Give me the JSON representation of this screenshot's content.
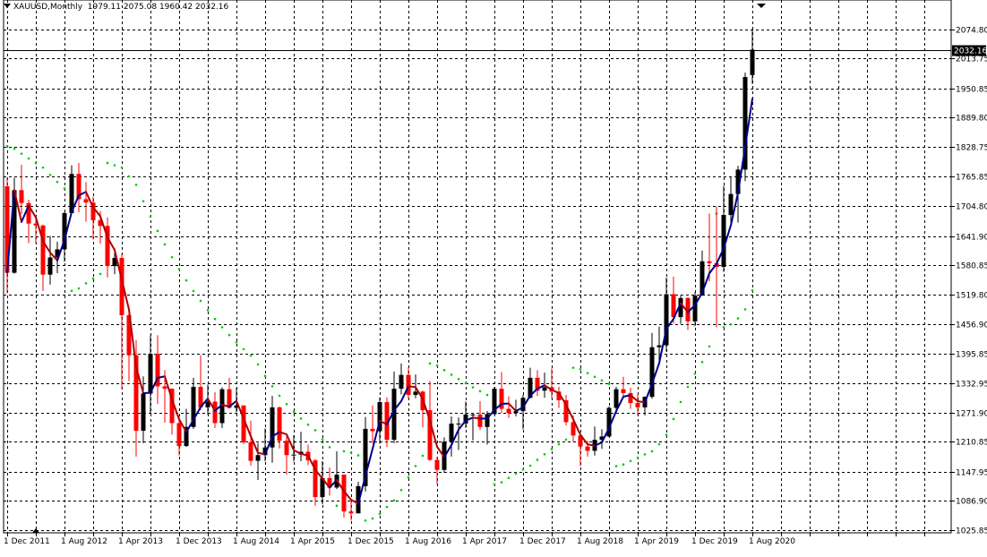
{
  "header": {
    "symbol": "XAUUSD,Monthly",
    "ohlc": "1979.11 2075.08 1960.42 2032.16"
  },
  "colors": {
    "bull": "#000000",
    "bear": "#ff0000",
    "ma_fast": "#00008b",
    "ma_slow": "#b00000",
    "psar": "#00cc00",
    "grid": "#000000",
    "price_line": "#000000"
  },
  "icons": {
    "shift_marker": "triangle-down-icon",
    "period_marker": "triangle-up-icon"
  },
  "chart_data": {
    "type": "candlestick",
    "symbol": "XAUUSD",
    "timeframe": "Monthly",
    "current_price": "2032.16",
    "ylim": [
      1025.85,
      2095.0
    ],
    "y_ticks": [
      "2074.80",
      "2013.75",
      "1950.85",
      "1889.80",
      "1828.75",
      "1765.85",
      "1704.80",
      "1641.90",
      "1580.85",
      "1519.80",
      "1456.90",
      "1395.85",
      "1332.95",
      "1271.90",
      "1210.85",
      "1147.95",
      "1086.90",
      "1025.85"
    ],
    "x_ticks": [
      "1 Dec 2011",
      "1 Aug 2012",
      "1 Apr 2013",
      "1 Dec 2013",
      "1 Aug 2014",
      "1 Apr 2015",
      "1 Dec 2015",
      "1 Aug 2016",
      "1 Apr 2017",
      "1 Dec 2017",
      "1 Aug 2018",
      "1 Apr 2019",
      "1 Dec 2019",
      "1 Aug 2020"
    ],
    "candles": [
      {
        "t": "2011-12",
        "o": 1746,
        "h": 1764,
        "l": 1522,
        "c": 1565
      },
      {
        "t": "2012-01",
        "o": 1565,
        "h": 1764,
        "l": 1563,
        "c": 1738
      },
      {
        "t": "2012-02",
        "o": 1738,
        "h": 1791,
        "l": 1688,
        "c": 1711
      },
      {
        "t": "2012-03",
        "o": 1711,
        "h": 1718,
        "l": 1627,
        "c": 1668
      },
      {
        "t": "2012-04",
        "o": 1668,
        "h": 1677,
        "l": 1626,
        "c": 1664
      },
      {
        "t": "2012-05",
        "o": 1664,
        "h": 1666,
        "l": 1527,
        "c": 1561
      },
      {
        "t": "2012-06",
        "o": 1561,
        "h": 1642,
        "l": 1540,
        "c": 1597
      },
      {
        "t": "2012-07",
        "o": 1597,
        "h": 1630,
        "l": 1564,
        "c": 1614
      },
      {
        "t": "2012-08",
        "o": 1614,
        "h": 1693,
        "l": 1588,
        "c": 1690
      },
      {
        "t": "2012-09",
        "o": 1690,
        "h": 1790,
        "l": 1687,
        "c": 1772
      },
      {
        "t": "2012-10",
        "o": 1772,
        "h": 1795,
        "l": 1692,
        "c": 1719
      },
      {
        "t": "2012-11",
        "o": 1719,
        "h": 1755,
        "l": 1672,
        "c": 1712
      },
      {
        "t": "2012-12",
        "o": 1712,
        "h": 1724,
        "l": 1635,
        "c": 1675
      },
      {
        "t": "2013-01",
        "o": 1675,
        "h": 1694,
        "l": 1626,
        "c": 1663
      },
      {
        "t": "2013-02",
        "o": 1663,
        "h": 1681,
        "l": 1555,
        "c": 1579
      },
      {
        "t": "2013-03",
        "o": 1579,
        "h": 1616,
        "l": 1562,
        "c": 1596
      },
      {
        "t": "2013-04",
        "o": 1596,
        "h": 1605,
        "l": 1321,
        "c": 1476
      },
      {
        "t": "2013-05",
        "o": 1476,
        "h": 1487,
        "l": 1338,
        "c": 1392
      },
      {
        "t": "2013-06",
        "o": 1392,
        "h": 1424,
        "l": 1180,
        "c": 1234
      },
      {
        "t": "2013-07",
        "o": 1234,
        "h": 1348,
        "l": 1208,
        "c": 1312
      },
      {
        "t": "2013-08",
        "o": 1312,
        "h": 1434,
        "l": 1271,
        "c": 1395
      },
      {
        "t": "2013-09",
        "o": 1395,
        "h": 1434,
        "l": 1290,
        "c": 1327
      },
      {
        "t": "2013-10",
        "o": 1327,
        "h": 1361,
        "l": 1251,
        "c": 1322
      },
      {
        "t": "2013-11",
        "o": 1322,
        "h": 1323,
        "l": 1226,
        "c": 1250
      },
      {
        "t": "2013-12",
        "o": 1250,
        "h": 1266,
        "l": 1182,
        "c": 1202
      },
      {
        "t": "2014-01",
        "o": 1202,
        "h": 1280,
        "l": 1200,
        "c": 1242
      },
      {
        "t": "2014-02",
        "o": 1242,
        "h": 1345,
        "l": 1238,
        "c": 1326
      },
      {
        "t": "2014-03",
        "o": 1326,
        "h": 1392,
        "l": 1277,
        "c": 1283
      },
      {
        "t": "2014-04",
        "o": 1283,
        "h": 1331,
        "l": 1268,
        "c": 1295
      },
      {
        "t": "2014-05",
        "o": 1295,
        "h": 1315,
        "l": 1240,
        "c": 1250
      },
      {
        "t": "2014-06",
        "o": 1250,
        "h": 1325,
        "l": 1240,
        "c": 1321
      },
      {
        "t": "2014-07",
        "o": 1321,
        "h": 1345,
        "l": 1280,
        "c": 1282
      },
      {
        "t": "2014-08",
        "o": 1282,
        "h": 1324,
        "l": 1273,
        "c": 1287
      },
      {
        "t": "2014-09",
        "o": 1287,
        "h": 1287,
        "l": 1206,
        "c": 1210
      },
      {
        "t": "2014-10",
        "o": 1210,
        "h": 1255,
        "l": 1161,
        "c": 1171
      },
      {
        "t": "2014-11",
        "o": 1171,
        "h": 1208,
        "l": 1131,
        "c": 1183
      },
      {
        "t": "2014-12",
        "o": 1183,
        "h": 1239,
        "l": 1170,
        "c": 1199
      },
      {
        "t": "2015-01",
        "o": 1199,
        "h": 1307,
        "l": 1167,
        "c": 1283
      },
      {
        "t": "2015-02",
        "o": 1283,
        "h": 1285,
        "l": 1197,
        "c": 1213
      },
      {
        "t": "2015-03",
        "o": 1213,
        "h": 1224,
        "l": 1142,
        "c": 1183
      },
      {
        "t": "2015-04",
        "o": 1183,
        "h": 1225,
        "l": 1170,
        "c": 1184
      },
      {
        "t": "2015-05",
        "o": 1184,
        "h": 1232,
        "l": 1170,
        "c": 1190
      },
      {
        "t": "2015-06",
        "o": 1190,
        "h": 1205,
        "l": 1162,
        "c": 1172
      },
      {
        "t": "2015-07",
        "o": 1172,
        "h": 1175,
        "l": 1077,
        "c": 1095
      },
      {
        "t": "2015-08",
        "o": 1095,
        "h": 1170,
        "l": 1080,
        "c": 1135
      },
      {
        "t": "2015-09",
        "o": 1135,
        "h": 1157,
        "l": 1098,
        "c": 1115
      },
      {
        "t": "2015-10",
        "o": 1115,
        "h": 1191,
        "l": 1112,
        "c": 1142
      },
      {
        "t": "2015-11",
        "o": 1142,
        "h": 1143,
        "l": 1052,
        "c": 1065
      },
      {
        "t": "2015-12",
        "o": 1065,
        "h": 1088,
        "l": 1046,
        "c": 1061
      },
      {
        "t": "2016-01",
        "o": 1061,
        "h": 1127,
        "l": 1061,
        "c": 1118
      },
      {
        "t": "2016-02",
        "o": 1118,
        "h": 1263,
        "l": 1107,
        "c": 1238
      },
      {
        "t": "2016-03",
        "o": 1238,
        "h": 1287,
        "l": 1208,
        "c": 1233
      },
      {
        "t": "2016-04",
        "o": 1233,
        "h": 1304,
        "l": 1207,
        "c": 1294
      },
      {
        "t": "2016-05",
        "o": 1294,
        "h": 1304,
        "l": 1200,
        "c": 1215
      },
      {
        "t": "2016-06",
        "o": 1215,
        "h": 1358,
        "l": 1208,
        "c": 1322
      },
      {
        "t": "2016-07",
        "o": 1322,
        "h": 1375,
        "l": 1310,
        "c": 1351
      },
      {
        "t": "2016-08",
        "o": 1351,
        "h": 1367,
        "l": 1301,
        "c": 1309
      },
      {
        "t": "2016-09",
        "o": 1309,
        "h": 1352,
        "l": 1302,
        "c": 1316
      },
      {
        "t": "2016-10",
        "o": 1316,
        "h": 1318,
        "l": 1241,
        "c": 1277
      },
      {
        "t": "2016-11",
        "o": 1277,
        "h": 1338,
        "l": 1171,
        "c": 1173
      },
      {
        "t": "2016-12",
        "o": 1173,
        "h": 1180,
        "l": 1122,
        "c": 1152
      },
      {
        "t": "2017-01",
        "o": 1152,
        "h": 1220,
        "l": 1146,
        "c": 1211
      },
      {
        "t": "2017-02",
        "o": 1211,
        "h": 1264,
        "l": 1180,
        "c": 1249
      },
      {
        "t": "2017-03",
        "o": 1249,
        "h": 1262,
        "l": 1194,
        "c": 1249
      },
      {
        "t": "2017-04",
        "o": 1249,
        "h": 1295,
        "l": 1240,
        "c": 1268
      },
      {
        "t": "2017-05",
        "o": 1268,
        "h": 1270,
        "l": 1214,
        "c": 1268
      },
      {
        "t": "2017-06",
        "o": 1268,
        "h": 1296,
        "l": 1236,
        "c": 1242
      },
      {
        "t": "2017-07",
        "o": 1242,
        "h": 1275,
        "l": 1205,
        "c": 1269
      },
      {
        "t": "2017-08",
        "o": 1269,
        "h": 1326,
        "l": 1268,
        "c": 1322
      },
      {
        "t": "2017-09",
        "o": 1322,
        "h": 1357,
        "l": 1271,
        "c": 1280
      },
      {
        "t": "2017-10",
        "o": 1280,
        "h": 1306,
        "l": 1261,
        "c": 1271
      },
      {
        "t": "2017-11",
        "o": 1271,
        "h": 1299,
        "l": 1264,
        "c": 1275
      },
      {
        "t": "2017-12",
        "o": 1275,
        "h": 1309,
        "l": 1237,
        "c": 1303
      },
      {
        "t": "2018-01",
        "o": 1303,
        "h": 1366,
        "l": 1302,
        "c": 1345
      },
      {
        "t": "2018-02",
        "o": 1345,
        "h": 1361,
        "l": 1307,
        "c": 1318
      },
      {
        "t": "2018-03",
        "o": 1318,
        "h": 1356,
        "l": 1303,
        "c": 1325
      },
      {
        "t": "2018-04",
        "o": 1325,
        "h": 1365,
        "l": 1302,
        "c": 1316
      },
      {
        "t": "2018-05",
        "o": 1316,
        "h": 1326,
        "l": 1282,
        "c": 1298
      },
      {
        "t": "2018-06",
        "o": 1298,
        "h": 1309,
        "l": 1245,
        "c": 1252
      },
      {
        "t": "2018-07",
        "o": 1252,
        "h": 1266,
        "l": 1211,
        "c": 1224
      },
      {
        "t": "2018-08",
        "o": 1224,
        "h": 1219,
        "l": 1160,
        "c": 1201
      },
      {
        "t": "2018-09",
        "o": 1201,
        "h": 1213,
        "l": 1180,
        "c": 1192
      },
      {
        "t": "2018-10",
        "o": 1192,
        "h": 1243,
        "l": 1182,
        "c": 1215
      },
      {
        "t": "2018-11",
        "o": 1215,
        "h": 1237,
        "l": 1196,
        "c": 1222
      },
      {
        "t": "2018-12",
        "o": 1222,
        "h": 1285,
        "l": 1221,
        "c": 1282
      },
      {
        "t": "2019-01",
        "o": 1282,
        "h": 1326,
        "l": 1275,
        "c": 1321
      },
      {
        "t": "2019-02",
        "o": 1321,
        "h": 1347,
        "l": 1302,
        "c": 1313
      },
      {
        "t": "2019-03",
        "o": 1313,
        "h": 1324,
        "l": 1280,
        "c": 1292
      },
      {
        "t": "2019-04",
        "o": 1292,
        "h": 1310,
        "l": 1266,
        "c": 1283
      },
      {
        "t": "2019-05",
        "o": 1283,
        "h": 1306,
        "l": 1266,
        "c": 1305
      },
      {
        "t": "2019-06",
        "o": 1305,
        "h": 1439,
        "l": 1301,
        "c": 1409
      },
      {
        "t": "2019-07",
        "o": 1409,
        "h": 1452,
        "l": 1381,
        "c": 1413
      },
      {
        "t": "2019-08",
        "o": 1413,
        "h": 1555,
        "l": 1400,
        "c": 1520
      },
      {
        "t": "2019-09",
        "o": 1520,
        "h": 1557,
        "l": 1459,
        "c": 1472
      },
      {
        "t": "2019-10",
        "o": 1472,
        "h": 1518,
        "l": 1458,
        "c": 1512
      },
      {
        "t": "2019-11",
        "o": 1512,
        "h": 1514,
        "l": 1445,
        "c": 1463
      },
      {
        "t": "2019-12",
        "o": 1463,
        "h": 1524,
        "l": 1453,
        "c": 1517
      },
      {
        "t": "2020-01",
        "o": 1517,
        "h": 1611,
        "l": 1517,
        "c": 1589
      },
      {
        "t": "2020-02",
        "o": 1589,
        "h": 1689,
        "l": 1547,
        "c": 1585
      },
      {
        "t": "2020-03",
        "o": 1585,
        "h": 1704,
        "l": 1451,
        "c": 1577
      },
      {
        "t": "2020-04",
        "o": 1577,
        "h": 1747,
        "l": 1567,
        "c": 1686
      },
      {
        "t": "2020-05",
        "o": 1686,
        "h": 1765,
        "l": 1670,
        "c": 1730
      },
      {
        "t": "2020-06",
        "o": 1730,
        "h": 1789,
        "l": 1670,
        "c": 1781
      },
      {
        "t": "2020-07",
        "o": 1781,
        "h": 1984,
        "l": 1757,
        "c": 1975
      },
      {
        "t": "2020-08",
        "o": 1979.11,
        "h": 2075.08,
        "l": 1960.42,
        "c": 2032.16
      }
    ]
  }
}
